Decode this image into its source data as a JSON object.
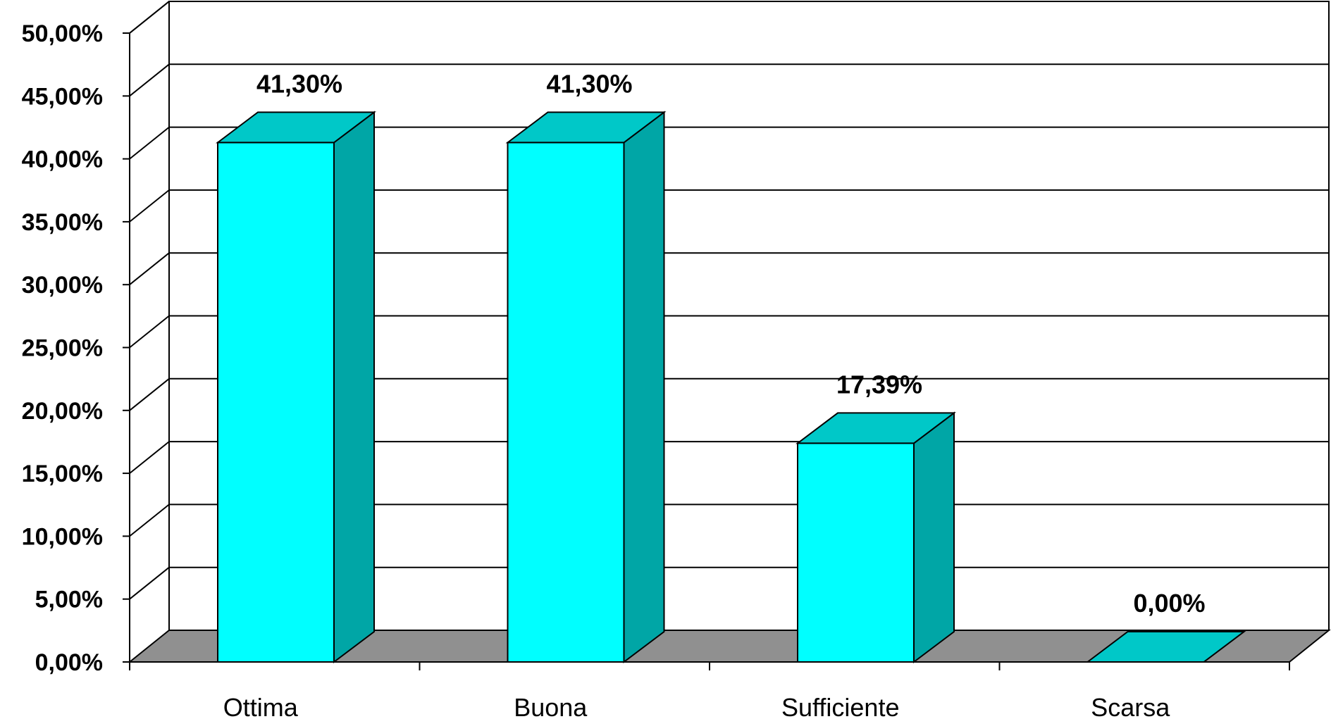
{
  "chart_data": {
    "type": "bar",
    "style": "3d",
    "categories": [
      "Ottima",
      "Buona",
      "Sufficiente",
      "Scarsa"
    ],
    "values": [
      41.3,
      41.3,
      17.39,
      0.0
    ],
    "data_labels": [
      "41,30%",
      "41,30%",
      "17,39%",
      "0,00%"
    ],
    "yticks": [
      "0,00%",
      "5,00%",
      "10,00%",
      "15,00%",
      "20,00%",
      "25,00%",
      "30,00%",
      "35,00%",
      "40,00%",
      "45,00%",
      "50,00%"
    ],
    "ylim": [
      0,
      50
    ],
    "ystep": 5,
    "grid": true,
    "legend": "none",
    "colors": {
      "bar_front": "#00FFFF",
      "bar_top": "#00C8C8",
      "bar_side": "#00A6A6",
      "floor": "#909090",
      "grid": "#000000"
    }
  }
}
